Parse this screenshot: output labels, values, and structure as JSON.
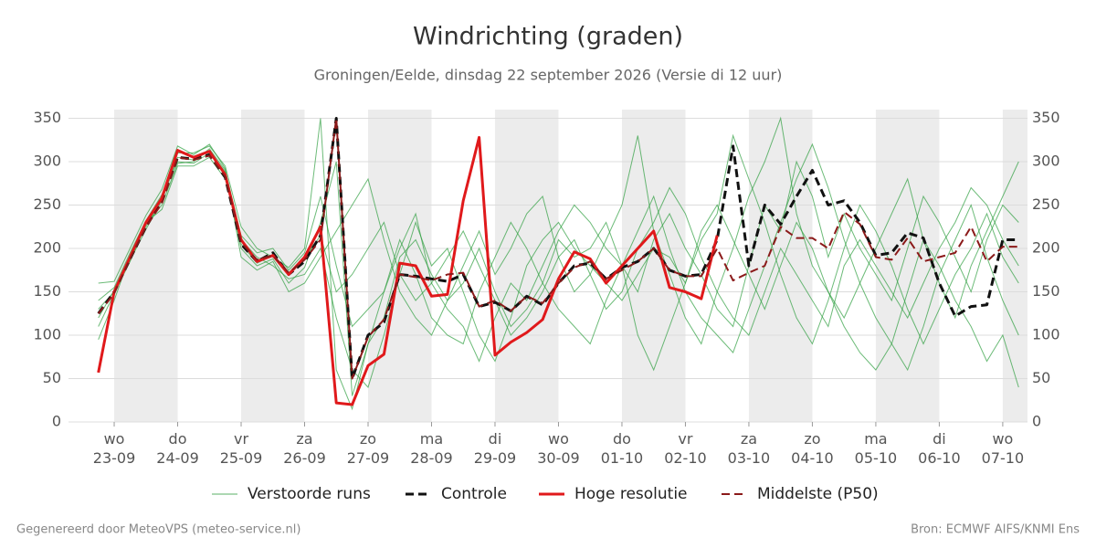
{
  "chart_data": {
    "type": "line",
    "title": "Windrichting (graden)",
    "subtitle": "Groningen/Eelde, dinsdag 22 september 2026 (Versie di 12 uur)",
    "footer_left": "Gegenereerd door MeteoVPS (meteo-service.nl)",
    "footer_right": "Bron: ECMWF AIFS/KNMI Ens",
    "x": [
      -0.25,
      0,
      0.25,
      0.5,
      0.75,
      1,
      1.25,
      1.5,
      1.75,
      2,
      2.25,
      2.5,
      2.75,
      3,
      3.25,
      3.5,
      3.75,
      4,
      4.25,
      4.5,
      4.75,
      5,
      5.25,
      5.5,
      5.75,
      6,
      6.25,
      6.5,
      6.75,
      7,
      7.25,
      7.5,
      7.75,
      8,
      8.25,
      8.5,
      8.75,
      9,
      9.25,
      9.5,
      9.75,
      10,
      10.25,
      10.5,
      10.75,
      11,
      11.25,
      11.5,
      11.75,
      12,
      12.25,
      12.5,
      12.75,
      13,
      13.25,
      13.5,
      13.75,
      14,
      14.25
    ],
    "xlim": [
      -0.72,
      14.39
    ],
    "xticks": [
      {
        "value": 0,
        "label": "wo 23-09"
      },
      {
        "value": 1,
        "label": "do 24-09"
      },
      {
        "value": 2,
        "label": "vr 25-09"
      },
      {
        "value": 3,
        "label": "za 26-09"
      },
      {
        "value": 4,
        "label": "zo 27-09"
      },
      {
        "value": 5,
        "label": "ma 28-09"
      },
      {
        "value": 6,
        "label": "di 29-09"
      },
      {
        "value": 7,
        "label": "wo 30-09"
      },
      {
        "value": 8,
        "label": "do 01-10"
      },
      {
        "value": 9,
        "label": "vr 02-10"
      },
      {
        "value": 10,
        "label": "za 03-10"
      },
      {
        "value": 11,
        "label": "zo 04-10"
      },
      {
        "value": 12,
        "label": "ma 05-10"
      },
      {
        "value": 13,
        "label": "di 06-10"
      },
      {
        "value": 14,
        "label": "wo 07-10"
      }
    ],
    "ylim": [
      0,
      360
    ],
    "yticks": [
      0,
      50,
      100,
      150,
      200,
      250,
      300,
      350
    ],
    "y2lim": [
      0,
      360
    ],
    "y2ticks": [
      0,
      50,
      100,
      150,
      200,
      250,
      300,
      350
    ],
    "grid": true,
    "legend": "bottom",
    "ensemble": {
      "name": "Verstoorde runs",
      "color": "#2e9e3e",
      "members": [
        [
          140,
          155,
          195,
          232,
          262,
          300,
          298,
          310,
          285,
          200,
          180,
          188,
          160,
          178,
          230,
          300,
          30,
          90,
          120,
          190,
          210,
          170,
          140,
          160,
          200,
          150,
          110,
          130,
          160,
          210,
          190,
          200,
          230,
          180,
          150,
          210,
          240,
          200,
          170,
          130,
          110,
          180,
          250,
          220,
          300,
          260,
          190,
          240,
          200,
          170,
          140,
          200,
          260,
          230,
          190,
          150,
          210,
          250,
          230
        ],
        [
          110,
          148,
          185,
          228,
          250,
          298,
          300,
          315,
          290,
          215,
          195,
          200,
          175,
          195,
          260,
          180,
          110,
          130,
          150,
          210,
          170,
          120,
          100,
          90,
          150,
          190,
          230,
          200,
          160,
          130,
          110,
          90,
          140,
          180,
          220,
          260,
          200,
          150,
          120,
          100,
          80,
          130,
          180,
          230,
          280,
          320,
          270,
          210,
          160,
          120,
          90,
          60,
          110,
          170,
          210,
          250,
          190,
          140,
          100
        ],
        [
          160,
          162,
          200,
          238,
          268,
          318,
          308,
          320,
          292,
          190,
          175,
          185,
          150,
          160,
          190,
          220,
          250,
          280,
          210,
          150,
          120,
          100,
          140,
          180,
          220,
          170,
          200,
          240,
          260,
          190,
          150,
          170,
          210,
          250,
          330,
          220,
          170,
          120,
          90,
          150,
          200,
          260,
          300,
          350,
          240,
          180,
          150,
          110,
          80,
          60,
          90,
          150,
          210,
          180,
          140,
          110,
          70,
          100,
          40
        ],
        [
          95,
          140,
          192,
          230,
          245,
          295,
          295,
          305,
          280,
          210,
          190,
          180,
          165,
          170,
          200,
          120,
          60,
          40,
          100,
          170,
          230,
          180,
          200,
          150,
          100,
          70,
          120,
          180,
          210,
          230,
          200,
          180,
          160,
          140,
          170,
          200,
          190,
          160,
          220,
          250,
          210,
          170,
          130,
          180,
          230,
          200,
          150,
          120,
          160,
          200,
          240,
          280,
          210,
          160,
          120,
          180,
          220,
          260,
          300
        ],
        [
          130,
          150,
          190,
          225,
          258,
          310,
          310,
          318,
          295,
          225,
          200,
          190,
          178,
          200,
          350,
          60,
          15,
          90,
          150,
          200,
          240,
          160,
          130,
          110,
          70,
          120,
          160,
          140,
          180,
          220,
          250,
          230,
          200,
          180,
          100,
          60,
          110,
          160,
          210,
          240,
          330,
          280,
          230,
          170,
          120,
          90,
          140,
          200,
          250,
          220,
          180,
          130,
          90,
          130,
          170,
          200,
          240,
          190,
          160
        ],
        [
          120,
          152,
          186,
          222,
          255,
          305,
          302,
          312,
          288,
          205,
          183,
          192,
          172,
          188,
          215,
          150,
          170,
          200,
          230,
          170,
          140,
          160,
          190,
          220,
          180,
          140,
          100,
          120,
          150,
          190,
          210,
          170,
          130,
          150,
          200,
          230,
          270,
          240,
          190,
          150,
          120,
          100,
          150,
          200,
          170,
          140,
          110,
          180,
          210,
          180,
          150,
          120,
          160,
          200,
          230,
          270,
          250,
          210,
          180
        ]
      ]
    },
    "series": [
      {
        "name": "Controle",
        "color": "#111111",
        "dash": "dashed",
        "values": [
          125,
          150,
          188,
          225,
          255,
          305,
          303,
          308,
          282,
          205,
          185,
          195,
          170,
          185,
          215,
          350,
          50,
          100,
          115,
          170,
          168,
          165,
          162,
          170,
          133,
          138,
          128,
          145,
          135,
          160,
          180,
          183,
          165,
          178,
          185,
          200,
          175,
          168,
          170,
          210,
          318,
          180,
          250,
          228,
          260,
          290,
          250,
          255,
          230,
          192,
          195,
          218,
          212,
          160,
          122,
          133,
          135,
          210,
          210
        ]
      },
      {
        "name": "Hoge resolutie",
        "color": "#e0191b",
        "dash": "solid",
        "values": [
          57,
          150,
          190,
          230,
          258,
          313,
          305,
          312,
          285,
          210,
          185,
          192,
          170,
          190,
          225,
          22,
          20,
          65,
          78,
          183,
          180,
          145,
          147,
          255,
          328,
          77,
          92,
          103,
          118,
          165,
          196,
          188,
          160,
          180,
          200,
          220,
          155,
          150,
          142,
          215,
          null,
          null,
          null,
          null,
          null,
          null,
          null,
          null,
          null,
          null,
          null,
          null,
          null,
          null,
          null,
          null,
          null,
          null,
          null
        ]
      },
      {
        "name": "Middelste (P50)",
        "color": "#8b1a1a",
        "dash": "dashed",
        "values": [
          125,
          148,
          188,
          225,
          252,
          305,
          302,
          307,
          283,
          207,
          187,
          192,
          172,
          187,
          210,
          350,
          50,
          98,
          118,
          170,
          167,
          163,
          170,
          172,
          133,
          140,
          128,
          145,
          137,
          160,
          178,
          185,
          165,
          175,
          185,
          200,
          175,
          168,
          168,
          200,
          163,
          172,
          180,
          225,
          212,
          212,
          200,
          242,
          228,
          190,
          187,
          212,
          185,
          190,
          195,
          225,
          185,
          202,
          202
        ]
      }
    ]
  }
}
